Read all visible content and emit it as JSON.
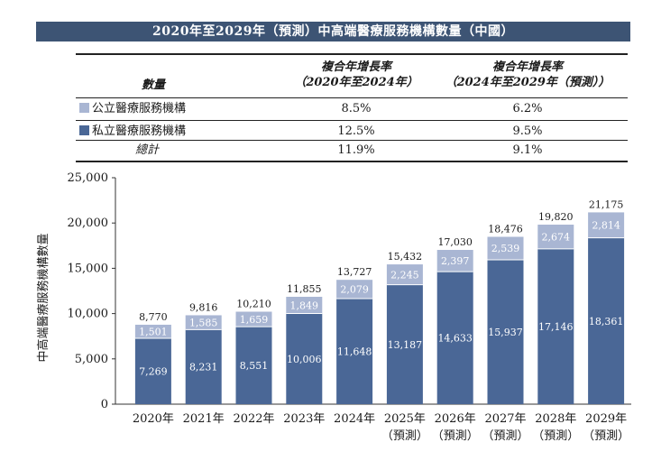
{
  "title": "2020年至2029年（預測）中高端醫療服務機構數量（中國）",
  "colors": {
    "public": "#a9b6d3",
    "private": "#4a6796",
    "title_bg": "#3d5474"
  },
  "table": {
    "header": {
      "col0": "數量",
      "col1_line1": "複合年增長率",
      "col1_line2": "（2020年至2024年）",
      "col2_line1": "複合年增長率",
      "col2_line2": "（2024年至2029年（預測））"
    },
    "rows": [
      {
        "label": "公立醫療服務機構",
        "v1": "8.5%",
        "v2": "6.2%"
      },
      {
        "label": "私立醫療服務機構",
        "v1": "12.5%",
        "v2": "9.5%"
      },
      {
        "label": "總計",
        "v1": "11.9%",
        "v2": "9.1%"
      }
    ]
  },
  "chart_data": {
    "type": "bar",
    "stacked": true,
    "ylabel": "中高端醫療服務機構數量",
    "ylim": [
      0,
      25000
    ],
    "yticks": [
      0,
      5000,
      10000,
      15000,
      20000,
      25000
    ],
    "ytick_labels": [
      "0",
      "5,000",
      "10,000",
      "15,000",
      "20,000",
      "25,000"
    ],
    "categories": [
      "2020年",
      "2021年",
      "2022年",
      "2023年",
      "2024年",
      "2025年",
      "2026年",
      "2027年",
      "2028年",
      "2029年"
    ],
    "category_sublabels": [
      "",
      "",
      "",
      "",
      "",
      "（預測）",
      "（預測）",
      "（預測）",
      "（預測）",
      "（預測）"
    ],
    "series": [
      {
        "name": "私立醫療服務機構",
        "values": [
          7269,
          8231,
          8551,
          10006,
          11648,
          13187,
          14633,
          15937,
          17146,
          18361
        ],
        "labels": [
          "7,269",
          "8,231",
          "8,551",
          "10,006",
          "11,648",
          "13,187",
          "14,633",
          "15,937",
          "17,146",
          "18,361"
        ]
      },
      {
        "name": "公立醫療服務機構",
        "values": [
          1501,
          1585,
          1659,
          1849,
          2079,
          2245,
          2397,
          2539,
          2674,
          2814
        ],
        "labels": [
          "1,501",
          "1,585",
          "1,659",
          "1,849",
          "2,079",
          "2,245",
          "2,397",
          "2,539",
          "2,674",
          "2,814"
        ]
      }
    ],
    "totals": [
      8770,
      9816,
      10210,
      11855,
      13727,
      15432,
      17030,
      18476,
      19820,
      21175
    ],
    "total_labels": [
      "8,770",
      "9,816",
      "10,210",
      "11,855",
      "13,727",
      "15,432",
      "17,030",
      "18,476",
      "19,820",
      "21,175"
    ]
  }
}
